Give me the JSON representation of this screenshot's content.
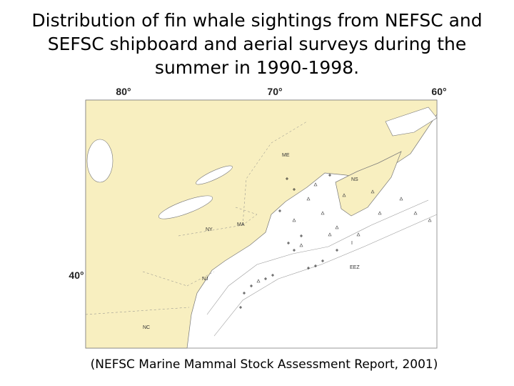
{
  "title": "Distribution of fin whale sightings from NEFSC and SEFSC shipboard and aerial surveys during the summer in 1990-1998.",
  "map": {
    "longitude_labels": [
      "80°",
      "70°",
      "60°"
    ],
    "latitude_labels": [
      "40°"
    ],
    "place_labels": [
      "ME",
      "NS",
      "NY",
      "MA",
      "NJ",
      "NC",
      "EEZ",
      "I"
    ]
  },
  "caption": "(NEFSC Marine Mammal Stock Assessment Report, 2001)"
}
